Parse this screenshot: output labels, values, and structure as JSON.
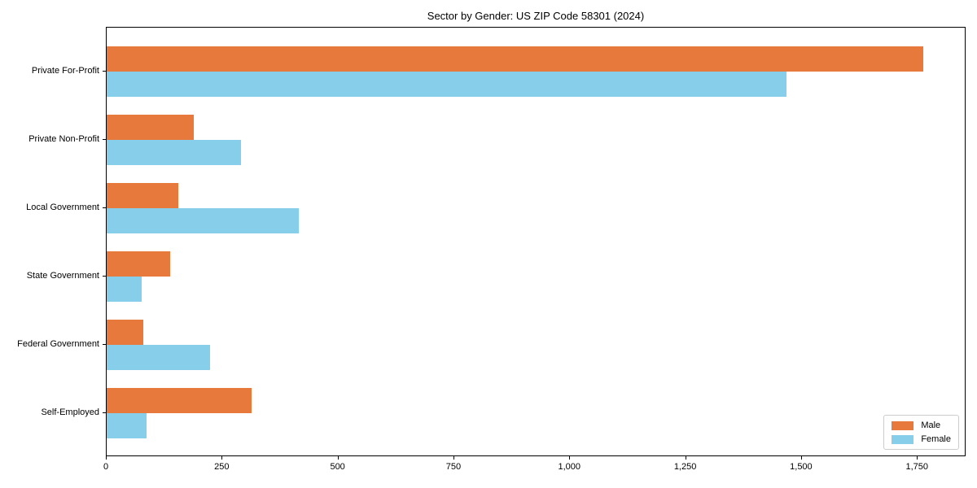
{
  "title": "Sector by Gender: US ZIP Code 58301 (2024)",
  "chart_data": {
    "type": "bar",
    "orientation": "horizontal",
    "title": "Sector by Gender: US ZIP Code 58301 (2024)",
    "categories": [
      "Private For-Profit",
      "Private Non-Profit",
      "Local Government",
      "State Government",
      "Federal Government",
      "Self-Employed"
    ],
    "series": [
      {
        "name": "Male",
        "color": "#E8793D",
        "values": [
          1765,
          188,
          154,
          138,
          79,
          313
        ]
      },
      {
        "name": "Female",
        "color": "#87CEEB",
        "values": [
          1470,
          290,
          415,
          75,
          223,
          87
        ]
      }
    ],
    "xlabel": "",
    "ylabel": "",
    "xlim": [
      0,
      1855
    ],
    "x_ticks": [
      0,
      250,
      500,
      750,
      1000,
      1250,
      1500,
      1750
    ],
    "x_tick_labels": [
      "0",
      "250",
      "500",
      "750",
      "1,000",
      "1,250",
      "1,500",
      "1,750"
    ],
    "grid": false,
    "background": "#FFFFFF",
    "legend": {
      "position": "lower-right",
      "items": [
        {
          "label": "Male",
          "color": "#E8793D"
        },
        {
          "label": "Female",
          "color": "#87CEEB"
        }
      ]
    }
  }
}
